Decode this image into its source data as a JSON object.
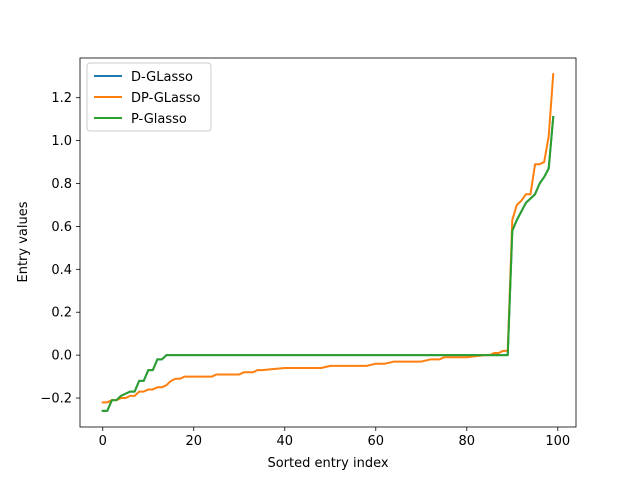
{
  "chart_data": {
    "type": "line",
    "title": "",
    "xlabel": "Sorted entry index",
    "ylabel": "Entry values",
    "xlim": [
      -5,
      104
    ],
    "ylim": [
      -0.335,
      1.385
    ],
    "xticks": [
      0,
      20,
      40,
      60,
      80,
      100
    ],
    "yticks": [
      -0.2,
      0.0,
      0.2,
      0.4,
      0.6,
      0.8,
      1.0,
      1.2
    ],
    "xtick_labels": [
      "0",
      "20",
      "40",
      "60",
      "80",
      "100"
    ],
    "ytick_labels": [
      "−0.2",
      "0.0",
      "0.2",
      "0.4",
      "0.6",
      "0.8",
      "1.0",
      "1.2"
    ],
    "grid": false,
    "legend_position": "top-left",
    "series": [
      {
        "name": "D-GLasso",
        "color": "#1f77b4",
        "x": [
          0,
          1,
          2,
          3,
          4,
          5,
          6,
          7,
          8,
          9,
          10,
          11,
          12,
          13,
          14,
          15,
          20,
          30,
          40,
          50,
          60,
          70,
          80,
          85,
          89,
          90,
          91,
          92,
          93,
          94,
          95,
          96,
          97,
          98,
          99
        ],
        "y": [
          -0.26,
          -0.26,
          -0.21,
          -0.21,
          -0.19,
          -0.18,
          -0.17,
          -0.17,
          -0.12,
          -0.12,
          -0.07,
          -0.07,
          -0.02,
          -0.02,
          0.0,
          0.0,
          0.0,
          0.0,
          0.0,
          0.0,
          0.0,
          0.0,
          0.0,
          0.0,
          0.0,
          0.58,
          0.63,
          0.67,
          0.71,
          0.73,
          0.75,
          0.8,
          0.83,
          0.87,
          1.11
        ]
      },
      {
        "name": "DP-GLasso",
        "color": "#ff7f0e",
        "x": [
          0,
          1,
          2,
          3,
          4,
          5,
          6,
          7,
          8,
          9,
          10,
          11,
          12,
          13,
          14,
          15,
          16,
          17,
          18,
          19,
          20,
          22,
          24,
          25,
          28,
          30,
          31,
          33,
          34,
          35,
          40,
          45,
          48,
          50,
          55,
          58,
          60,
          62,
          64,
          66,
          70,
          72,
          74,
          75,
          80,
          84,
          85,
          86,
          87,
          88,
          89,
          90,
          91,
          92,
          93,
          94,
          95,
          96,
          97,
          98,
          99
        ],
        "y": [
          -0.22,
          -0.22,
          -0.21,
          -0.21,
          -0.2,
          -0.2,
          -0.19,
          -0.19,
          -0.17,
          -0.17,
          -0.16,
          -0.16,
          -0.15,
          -0.15,
          -0.14,
          -0.12,
          -0.11,
          -0.11,
          -0.1,
          -0.1,
          -0.1,
          -0.1,
          -0.1,
          -0.09,
          -0.09,
          -0.09,
          -0.08,
          -0.08,
          -0.07,
          -0.07,
          -0.06,
          -0.06,
          -0.06,
          -0.05,
          -0.05,
          -0.05,
          -0.04,
          -0.04,
          -0.03,
          -0.03,
          -0.03,
          -0.02,
          -0.02,
          -0.01,
          -0.01,
          0.0,
          0.0,
          0.01,
          0.01,
          0.02,
          0.02,
          0.63,
          0.7,
          0.72,
          0.75,
          0.75,
          0.89,
          0.89,
          0.9,
          1.02,
          1.31
        ]
      },
      {
        "name": "P-Glasso",
        "color": "#2ca02c",
        "x": [
          0,
          1,
          2,
          3,
          4,
          5,
          6,
          7,
          8,
          9,
          10,
          11,
          12,
          13,
          14,
          15,
          20,
          30,
          40,
          50,
          60,
          70,
          80,
          85,
          89,
          90,
          91,
          92,
          93,
          94,
          95,
          96,
          97,
          98,
          99
        ],
        "y": [
          -0.26,
          -0.26,
          -0.21,
          -0.21,
          -0.19,
          -0.18,
          -0.17,
          -0.17,
          -0.12,
          -0.12,
          -0.07,
          -0.07,
          -0.02,
          -0.02,
          0.0,
          0.0,
          0.0,
          0.0,
          0.0,
          0.0,
          0.0,
          0.0,
          0.0,
          0.0,
          0.0,
          0.58,
          0.63,
          0.67,
          0.71,
          0.73,
          0.75,
          0.8,
          0.83,
          0.87,
          1.11
        ]
      }
    ]
  }
}
